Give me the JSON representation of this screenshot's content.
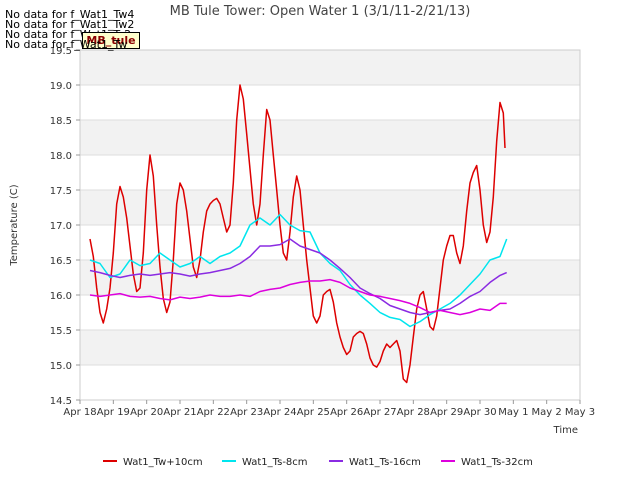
{
  "no_data_messages": [
    "No data for f_Wat1_Tw4",
    "No data for f_Wat1_Tw2",
    "No data for f_Wat1_Ts2",
    "No data for f_Wat1_Tw"
  ],
  "site_label": "MB_tule",
  "chart_data": {
    "type": "line",
    "title": "MB Tule Tower: Open Water 1 (3/1/11-2/21/13)",
    "xlabel": "Time",
    "ylabel": "Temperature (C)",
    "x_ticks": [
      "Apr 18",
      "Apr 19",
      "Apr 20",
      "Apr 21",
      "Apr 22",
      "Apr 23",
      "Apr 24",
      "Apr 25",
      "Apr 26",
      "Apr 27",
      "Apr 28",
      "Apr 29",
      "Apr 30",
      "May 1",
      "May 2",
      "May 3"
    ],
    "xlim": [
      0,
      15
    ],
    "ylim": [
      14.5,
      19.5
    ],
    "y_ticks": [
      14.5,
      15.0,
      15.5,
      16.0,
      16.5,
      17.0,
      17.5,
      18.0,
      18.5,
      19.0,
      19.5
    ],
    "y_tick_labels": [
      "14.5",
      "15.0",
      "15.5",
      "16.0",
      "16.5",
      "17.0",
      "17.5",
      "18.0",
      "18.5",
      "19.0",
      "19.5"
    ],
    "grid": true,
    "legend_position": "bottom",
    "series": [
      {
        "name": "Wat1_Tw+10cm",
        "color": "#dd0000",
        "points": [
          [
            0.3,
            16.8
          ],
          [
            0.4,
            16.55
          ],
          [
            0.5,
            16.1
          ],
          [
            0.6,
            15.75
          ],
          [
            0.7,
            15.6
          ],
          [
            0.8,
            15.8
          ],
          [
            0.9,
            16.1
          ],
          [
            1.0,
            16.6
          ],
          [
            1.1,
            17.3
          ],
          [
            1.2,
            17.55
          ],
          [
            1.3,
            17.4
          ],
          [
            1.4,
            17.1
          ],
          [
            1.5,
            16.7
          ],
          [
            1.6,
            16.3
          ],
          [
            1.7,
            16.05
          ],
          [
            1.8,
            16.1
          ],
          [
            1.9,
            16.6
          ],
          [
            2.0,
            17.5
          ],
          [
            2.1,
            18.0
          ],
          [
            2.2,
            17.7
          ],
          [
            2.3,
            17.0
          ],
          [
            2.4,
            16.4
          ],
          [
            2.5,
            15.95
          ],
          [
            2.6,
            15.75
          ],
          [
            2.7,
            15.9
          ],
          [
            2.8,
            16.5
          ],
          [
            2.9,
            17.3
          ],
          [
            3.0,
            17.6
          ],
          [
            3.1,
            17.5
          ],
          [
            3.2,
            17.2
          ],
          [
            3.3,
            16.8
          ],
          [
            3.4,
            16.4
          ],
          [
            3.5,
            16.25
          ],
          [
            3.6,
            16.5
          ],
          [
            3.7,
            16.9
          ],
          [
            3.8,
            17.2
          ],
          [
            3.9,
            17.3
          ],
          [
            4.0,
            17.35
          ],
          [
            4.1,
            17.38
          ],
          [
            4.2,
            17.3
          ],
          [
            4.3,
            17.1
          ],
          [
            4.4,
            16.9
          ],
          [
            4.5,
            17.0
          ],
          [
            4.6,
            17.6
          ],
          [
            4.7,
            18.5
          ],
          [
            4.8,
            19.0
          ],
          [
            4.9,
            18.8
          ],
          [
            5.0,
            18.3
          ],
          [
            5.1,
            17.8
          ],
          [
            5.2,
            17.3
          ],
          [
            5.3,
            17.0
          ],
          [
            5.4,
            17.3
          ],
          [
            5.5,
            18.0
          ],
          [
            5.6,
            18.65
          ],
          [
            5.7,
            18.5
          ],
          [
            5.8,
            18.0
          ],
          [
            5.9,
            17.5
          ],
          [
            6.0,
            17.0
          ],
          [
            6.1,
            16.6
          ],
          [
            6.2,
            16.5
          ],
          [
            6.3,
            16.9
          ],
          [
            6.4,
            17.4
          ],
          [
            6.5,
            17.7
          ],
          [
            6.6,
            17.5
          ],
          [
            6.7,
            17.0
          ],
          [
            6.8,
            16.5
          ],
          [
            6.9,
            16.1
          ],
          [
            7.0,
            15.7
          ],
          [
            7.1,
            15.6
          ],
          [
            7.2,
            15.7
          ],
          [
            7.3,
            16.0
          ],
          [
            7.4,
            16.05
          ],
          [
            7.5,
            16.08
          ],
          [
            7.6,
            15.9
          ],
          [
            7.7,
            15.6
          ],
          [
            7.8,
            15.4
          ],
          [
            7.9,
            15.25
          ],
          [
            8.0,
            15.15
          ],
          [
            8.1,
            15.2
          ],
          [
            8.2,
            15.4
          ],
          [
            8.3,
            15.45
          ],
          [
            8.4,
            15.48
          ],
          [
            8.5,
            15.45
          ],
          [
            8.6,
            15.3
          ],
          [
            8.7,
            15.1
          ],
          [
            8.8,
            15.0
          ],
          [
            8.9,
            14.97
          ],
          [
            9.0,
            15.05
          ],
          [
            9.1,
            15.2
          ],
          [
            9.2,
            15.3
          ],
          [
            9.3,
            15.25
          ],
          [
            9.4,
            15.3
          ],
          [
            9.5,
            15.35
          ],
          [
            9.6,
            15.2
          ],
          [
            9.7,
            14.8
          ],
          [
            9.8,
            14.75
          ],
          [
            9.9,
            15.0
          ],
          [
            10.0,
            15.4
          ],
          [
            10.1,
            15.8
          ],
          [
            10.2,
            16.0
          ],
          [
            10.3,
            16.05
          ],
          [
            10.4,
            15.8
          ],
          [
            10.5,
            15.55
          ],
          [
            10.6,
            15.5
          ],
          [
            10.7,
            15.7
          ],
          [
            10.8,
            16.1
          ],
          [
            10.9,
            16.5
          ],
          [
            11.0,
            16.7
          ],
          [
            11.1,
            16.85
          ],
          [
            11.2,
            16.85
          ],
          [
            11.3,
            16.6
          ],
          [
            11.4,
            16.45
          ],
          [
            11.5,
            16.7
          ],
          [
            11.6,
            17.2
          ],
          [
            11.7,
            17.6
          ],
          [
            11.8,
            17.75
          ],
          [
            11.9,
            17.85
          ],
          [
            12.0,
            17.5
          ],
          [
            12.1,
            17.0
          ],
          [
            12.2,
            16.75
          ],
          [
            12.3,
            16.9
          ],
          [
            12.4,
            17.4
          ],
          [
            12.5,
            18.2
          ],
          [
            12.6,
            18.75
          ],
          [
            12.7,
            18.6
          ],
          [
            12.75,
            18.1
          ]
        ]
      },
      {
        "name": "Wat1_Ts-8cm",
        "color": "#00e5ee",
        "points": [
          [
            0.3,
            16.5
          ],
          [
            0.6,
            16.45
          ],
          [
            0.9,
            16.25
          ],
          [
            1.2,
            16.3
          ],
          [
            1.5,
            16.5
          ],
          [
            1.8,
            16.42
          ],
          [
            2.1,
            16.45
          ],
          [
            2.4,
            16.6
          ],
          [
            2.7,
            16.5
          ],
          [
            3.0,
            16.4
          ],
          [
            3.3,
            16.45
          ],
          [
            3.6,
            16.55
          ],
          [
            3.9,
            16.45
          ],
          [
            4.2,
            16.55
          ],
          [
            4.5,
            16.6
          ],
          [
            4.8,
            16.7
          ],
          [
            5.1,
            17.0
          ],
          [
            5.4,
            17.1
          ],
          [
            5.7,
            17.0
          ],
          [
            6.0,
            17.15
          ],
          [
            6.3,
            17.0
          ],
          [
            6.6,
            16.92
          ],
          [
            6.9,
            16.9
          ],
          [
            7.2,
            16.6
          ],
          [
            7.5,
            16.45
          ],
          [
            7.8,
            16.35
          ],
          [
            8.1,
            16.15
          ],
          [
            8.4,
            16.0
          ],
          [
            8.7,
            15.88
          ],
          [
            9.0,
            15.75
          ],
          [
            9.3,
            15.68
          ],
          [
            9.6,
            15.65
          ],
          [
            9.9,
            15.55
          ],
          [
            10.2,
            15.62
          ],
          [
            10.5,
            15.72
          ],
          [
            10.8,
            15.8
          ],
          [
            11.1,
            15.88
          ],
          [
            11.4,
            16.0
          ],
          [
            11.7,
            16.15
          ],
          [
            12.0,
            16.3
          ],
          [
            12.3,
            16.5
          ],
          [
            12.6,
            16.55
          ],
          [
            12.8,
            16.8
          ]
        ]
      },
      {
        "name": "Wat1_Ts-16cm",
        "color": "#8a2be2",
        "points": [
          [
            0.3,
            16.35
          ],
          [
            0.6,
            16.32
          ],
          [
            0.9,
            16.28
          ],
          [
            1.2,
            16.25
          ],
          [
            1.5,
            16.28
          ],
          [
            1.8,
            16.3
          ],
          [
            2.1,
            16.28
          ],
          [
            2.4,
            16.3
          ],
          [
            2.7,
            16.32
          ],
          [
            3.0,
            16.3
          ],
          [
            3.3,
            16.27
          ],
          [
            3.6,
            16.3
          ],
          [
            3.9,
            16.32
          ],
          [
            4.2,
            16.35
          ],
          [
            4.5,
            16.38
          ],
          [
            4.8,
            16.45
          ],
          [
            5.1,
            16.55
          ],
          [
            5.4,
            16.7
          ],
          [
            5.7,
            16.7
          ],
          [
            6.0,
            16.72
          ],
          [
            6.3,
            16.8
          ],
          [
            6.6,
            16.7
          ],
          [
            6.9,
            16.65
          ],
          [
            7.2,
            16.6
          ],
          [
            7.5,
            16.5
          ],
          [
            7.8,
            16.38
          ],
          [
            8.1,
            16.25
          ],
          [
            8.4,
            16.1
          ],
          [
            8.7,
            16.02
          ],
          [
            9.0,
            15.95
          ],
          [
            9.3,
            15.85
          ],
          [
            9.6,
            15.8
          ],
          [
            9.9,
            15.75
          ],
          [
            10.2,
            15.72
          ],
          [
            10.5,
            15.75
          ],
          [
            10.8,
            15.78
          ],
          [
            11.1,
            15.8
          ],
          [
            11.4,
            15.88
          ],
          [
            11.7,
            15.98
          ],
          [
            12.0,
            16.05
          ],
          [
            12.3,
            16.18
          ],
          [
            12.6,
            16.28
          ],
          [
            12.8,
            16.32
          ]
        ]
      },
      {
        "name": "Wat1_Ts-32cm",
        "color": "#dd00dd",
        "points": [
          [
            0.3,
            16.0
          ],
          [
            0.6,
            15.98
          ],
          [
            0.9,
            16.0
          ],
          [
            1.2,
            16.02
          ],
          [
            1.5,
            15.98
          ],
          [
            1.8,
            15.97
          ],
          [
            2.1,
            15.98
          ],
          [
            2.4,
            15.95
          ],
          [
            2.7,
            15.93
          ],
          [
            3.0,
            15.97
          ],
          [
            3.3,
            15.95
          ],
          [
            3.6,
            15.97
          ],
          [
            3.9,
            16.0
          ],
          [
            4.2,
            15.98
          ],
          [
            4.5,
            15.98
          ],
          [
            4.8,
            16.0
          ],
          [
            5.1,
            15.98
          ],
          [
            5.4,
            16.05
          ],
          [
            5.7,
            16.08
          ],
          [
            6.0,
            16.1
          ],
          [
            6.3,
            16.15
          ],
          [
            6.6,
            16.18
          ],
          [
            6.9,
            16.2
          ],
          [
            7.2,
            16.2
          ],
          [
            7.5,
            16.22
          ],
          [
            7.8,
            16.18
          ],
          [
            8.1,
            16.1
          ],
          [
            8.4,
            16.05
          ],
          [
            8.7,
            16.0
          ],
          [
            9.0,
            15.98
          ],
          [
            9.3,
            15.95
          ],
          [
            9.6,
            15.92
          ],
          [
            9.9,
            15.88
          ],
          [
            10.2,
            15.82
          ],
          [
            10.5,
            15.75
          ],
          [
            10.8,
            15.78
          ],
          [
            11.1,
            15.75
          ],
          [
            11.4,
            15.72
          ],
          [
            11.7,
            15.75
          ],
          [
            12.0,
            15.8
          ],
          [
            12.3,
            15.78
          ],
          [
            12.6,
            15.88
          ],
          [
            12.8,
            15.88
          ]
        ]
      }
    ]
  }
}
